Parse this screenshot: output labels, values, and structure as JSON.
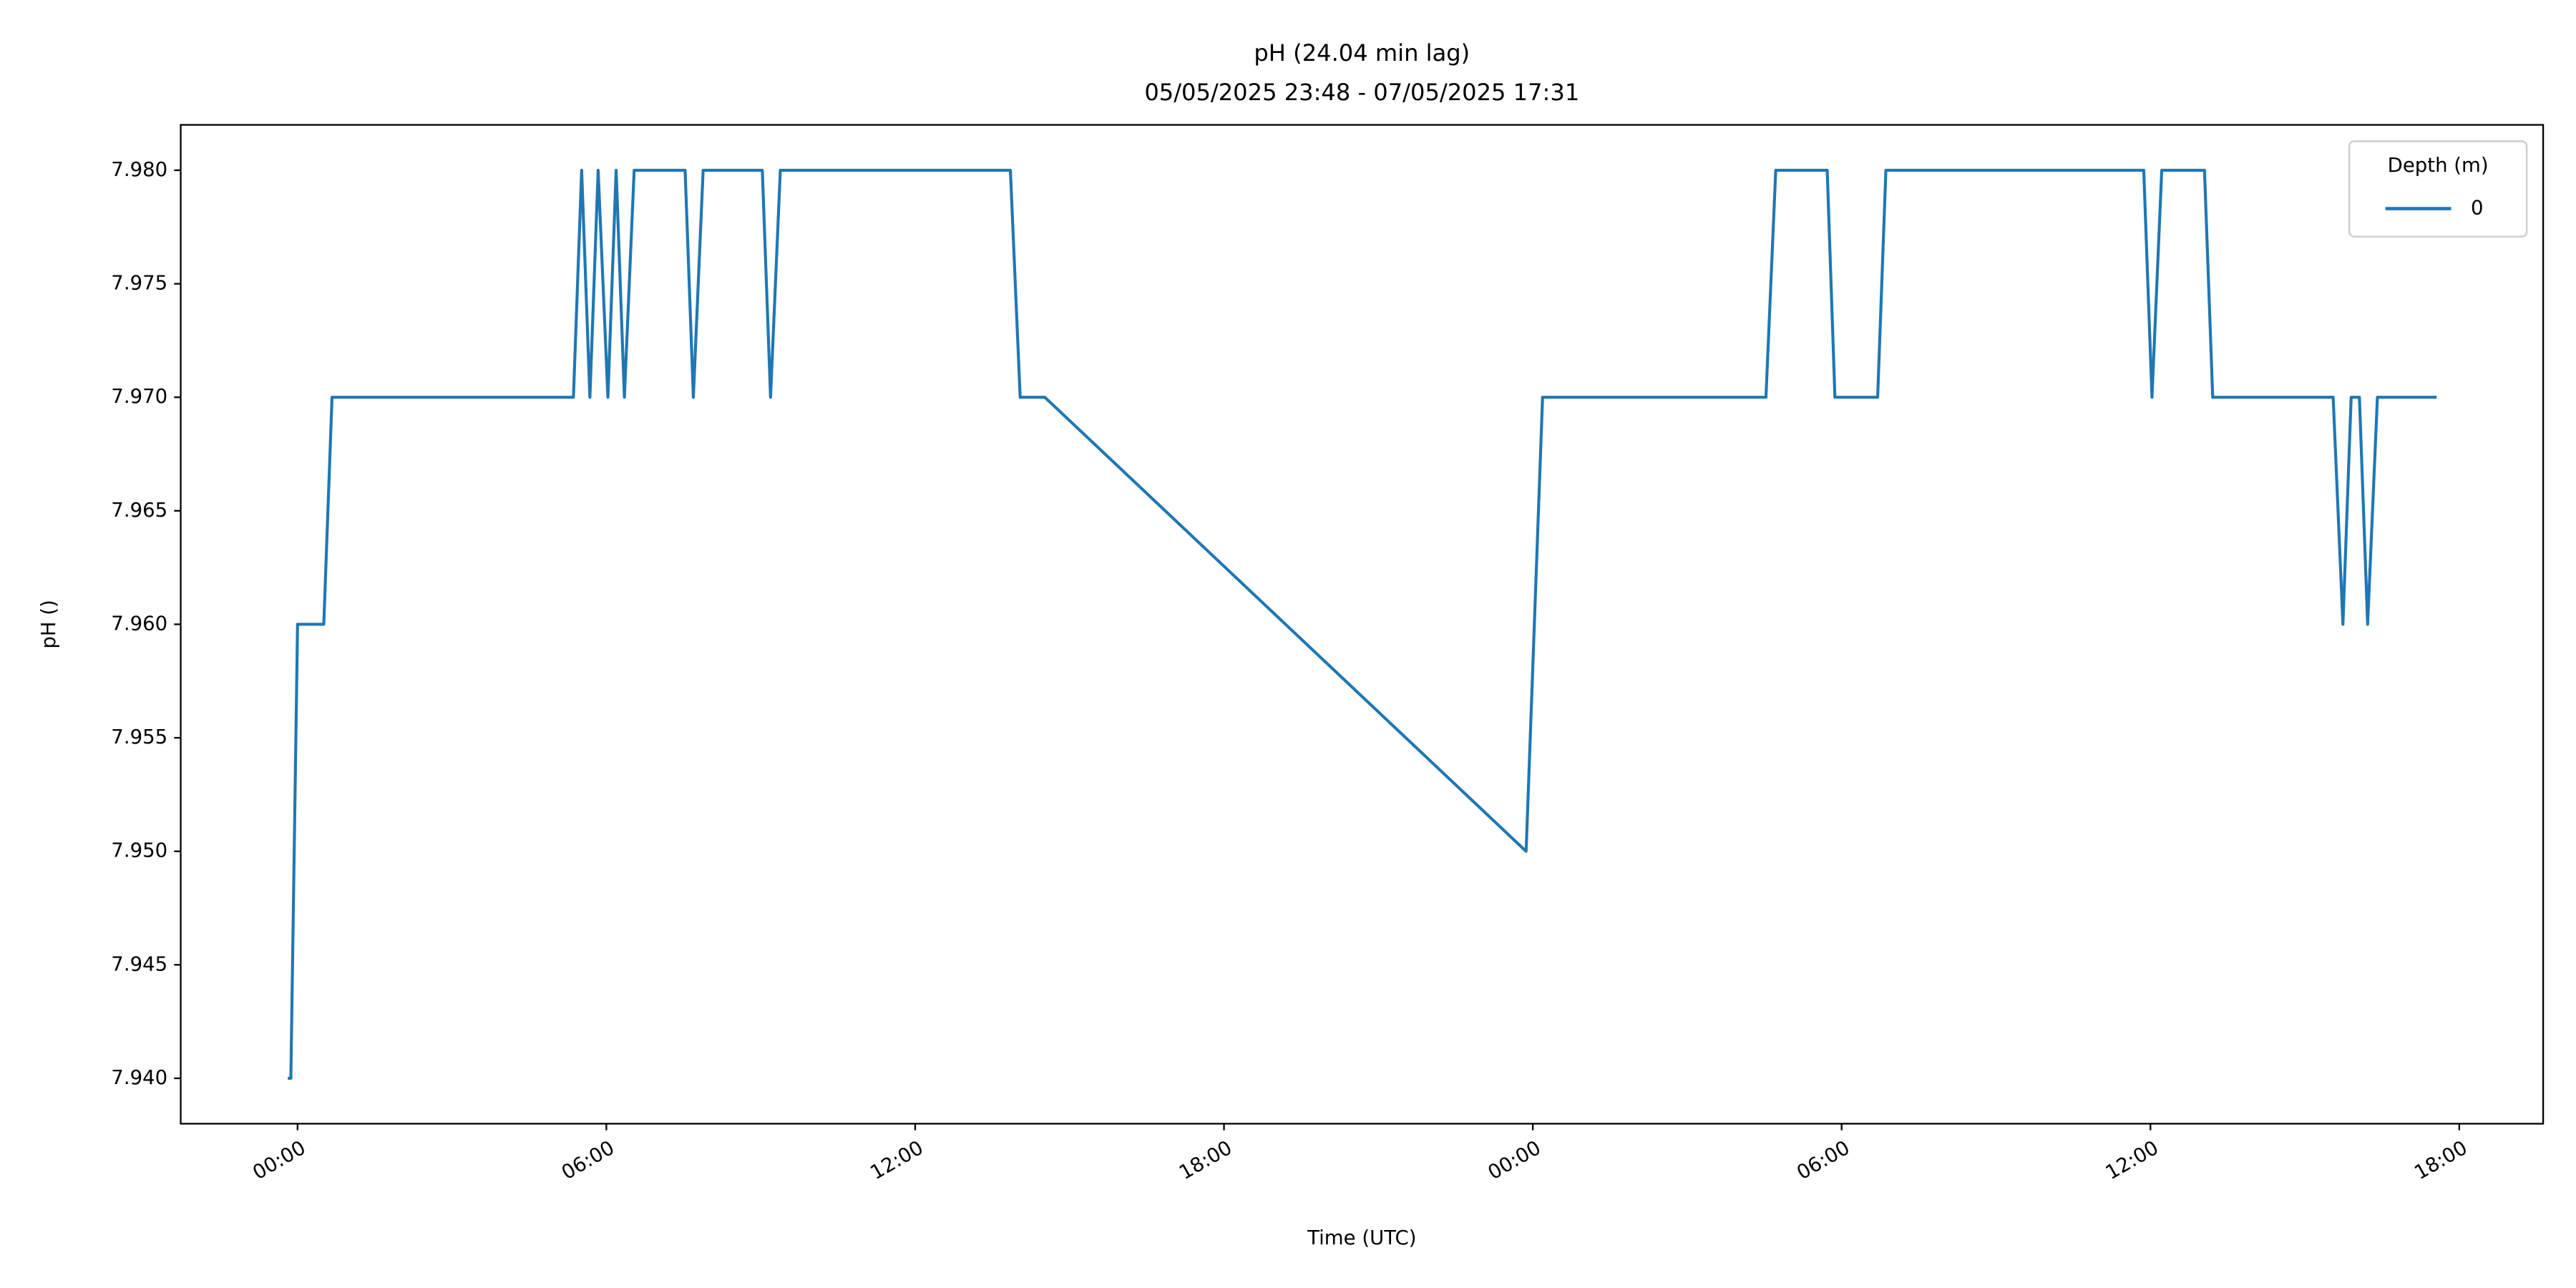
{
  "chart_data": {
    "type": "line",
    "title": "pH (24.04 min lag)",
    "subtitle": "05/05/2025 23:48 - 07/05/2025 17:31",
    "x_label": "Time (UTC)",
    "y_label": "pH ()",
    "legend_title": "Depth (m)",
    "legend_position": "upper right",
    "grid": false,
    "x": [
      -0.19,
      -0.13,
      0.0,
      0.51,
      0.67,
      5.36,
      5.52,
      5.68,
      5.84,
      6.03,
      6.19,
      6.35,
      6.54,
      7.53,
      7.69,
      7.88,
      9.03,
      9.19,
      9.38,
      13.85,
      14.04,
      14.52,
      23.87,
      24.19,
      28.53,
      28.72,
      29.72,
      29.87,
      30.7,
      30.86,
      35.87,
      36.03,
      36.22,
      37.05,
      37.21,
      39.55,
      39.74,
      39.9,
      40.06,
      40.22,
      40.41,
      41.56
    ],
    "series": [
      {
        "name": "0",
        "color": "#1f77b4",
        "values": [
          7.94,
          7.94,
          7.96,
          7.96,
          7.97,
          7.97,
          7.98,
          7.97,
          7.98,
          7.97,
          7.98,
          7.97,
          7.98,
          7.98,
          7.97,
          7.98,
          7.98,
          7.97,
          7.98,
          7.98,
          7.97,
          7.97,
          7.95,
          7.97,
          7.97,
          7.98,
          7.98,
          7.97,
          7.97,
          7.98,
          7.98,
          7.97,
          7.98,
          7.98,
          7.97,
          7.97,
          7.96,
          7.97,
          7.97,
          7.96,
          7.97,
          7.97
        ]
      }
    ],
    "xlim": [
      -2.27,
      43.63
    ],
    "xticks": [
      {
        "value": 0,
        "label": "00:00"
      },
      {
        "value": 6,
        "label": "06:00"
      },
      {
        "value": 12,
        "label": "12:00"
      },
      {
        "value": 18,
        "label": "18:00"
      },
      {
        "value": 24,
        "label": "00:00"
      },
      {
        "value": 30,
        "label": "06:00"
      },
      {
        "value": 36,
        "label": "12:00"
      },
      {
        "value": 42,
        "label": "18:00"
      }
    ],
    "ylim": [
      7.938,
      7.982
    ],
    "yticks": [
      {
        "value": 7.94,
        "label": "7.940"
      },
      7.945,
      {
        "value": 7.95,
        "label": "7.950"
      },
      7.955,
      {
        "value": 7.96,
        "label": "7.960"
      },
      7.965,
      {
        "value": 7.97,
        "label": "7.970"
      },
      7.975,
      {
        "value": 7.98,
        "label": "7.980"
      }
    ]
  }
}
